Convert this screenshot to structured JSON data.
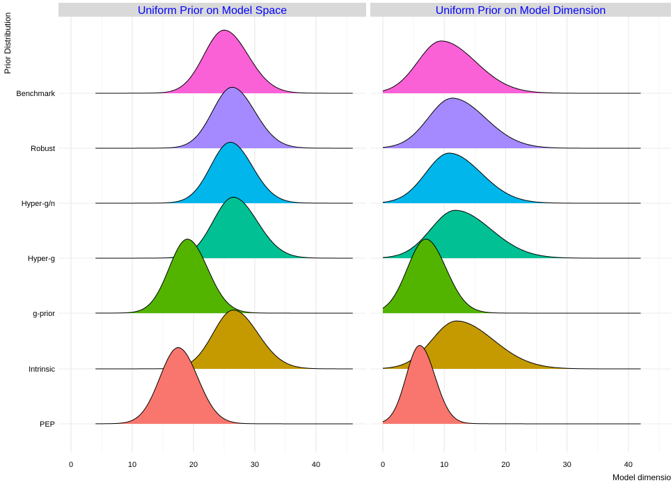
{
  "chart_data": {
    "type": "ridgeline",
    "ylabel": "Prior Distribution",
    "xlabel": "Model dimension",
    "xlim": [
      0,
      42
    ],
    "xticks": [
      0,
      10,
      20,
      30,
      40
    ],
    "grid": true,
    "legend": "none",
    "categories": [
      "PEP",
      "Intrinsic",
      "g-prior",
      "Hyper-g",
      "Hyper-g/n",
      "Robust",
      "Benchmark"
    ],
    "colors": {
      "PEP": "#F8766D",
      "Intrinsic": "#C49A00",
      "g-prior": "#53B400",
      "Hyper-g": "#00C094",
      "Hyper-g/n": "#00B6EB",
      "Robust": "#A58AFF",
      "Benchmark": "#FB61D7"
    },
    "panels": [
      {
        "title": "Uniform Prior on Model Space",
        "xrange": [
          4,
          46
        ],
        "ridges": [
          {
            "name": "PEP",
            "peak": 17.5,
            "sd_left": 3.0,
            "sd_right": 3.2,
            "height": 1.75
          },
          {
            "name": "Intrinsic",
            "peak": 26.5,
            "sd_left": 3.3,
            "sd_right": 4.0,
            "height": 1.35
          },
          {
            "name": "g-prior",
            "peak": 19.0,
            "sd_left": 3.0,
            "sd_right": 3.3,
            "height": 1.7
          },
          {
            "name": "Hyper-g",
            "peak": 26.5,
            "sd_left": 3.3,
            "sd_right": 3.9,
            "height": 1.4
          },
          {
            "name": "Hyper-g/n",
            "peak": 26.0,
            "sd_left": 3.2,
            "sd_right": 3.6,
            "height": 1.4
          },
          {
            "name": "Robust",
            "peak": 26.3,
            "sd_left": 3.2,
            "sd_right": 3.7,
            "height": 1.4
          },
          {
            "name": "Benchmark",
            "peak": 25.0,
            "sd_left": 3.3,
            "sd_right": 3.9,
            "height": 1.45
          }
        ]
      },
      {
        "title": "Uniform Prior on Model Dimension",
        "xrange": [
          0,
          42
        ],
        "ridges": [
          {
            "name": "PEP",
            "peak": 6.0,
            "sd_left": 2.2,
            "sd_right": 2.5,
            "height": 1.8
          },
          {
            "name": "Intrinsic",
            "peak": 12.0,
            "sd_left": 4.0,
            "sd_right": 6.0,
            "height": 1.1
          },
          {
            "name": "g-prior",
            "peak": 7.0,
            "sd_left": 3.0,
            "sd_right": 3.3,
            "height": 1.7
          },
          {
            "name": "Hyper-g",
            "peak": 11.8,
            "sd_left": 4.0,
            "sd_right": 5.8,
            "height": 1.1
          },
          {
            "name": "Hyper-g/n",
            "peak": 10.8,
            "sd_left": 3.8,
            "sd_right": 5.2,
            "height": 1.15
          },
          {
            "name": "Robust",
            "peak": 11.3,
            "sd_left": 3.9,
            "sd_right": 5.4,
            "height": 1.15
          },
          {
            "name": "Benchmark",
            "peak": 9.5,
            "sd_left": 3.8,
            "sd_right": 5.6,
            "height": 1.2
          }
        ]
      }
    ]
  }
}
